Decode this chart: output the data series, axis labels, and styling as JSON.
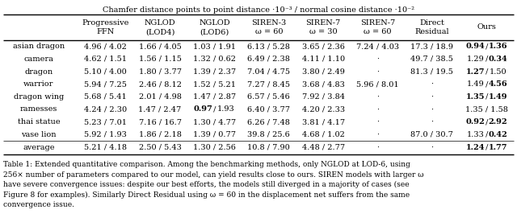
{
  "title": "Chamfer distance points to point distance ·10⁻³ / normal cosine distance ·10⁻²",
  "col_headers": [
    "Progressive\nFFN",
    "NGLOD\n(LOD4)",
    "NGLOD\n(LOD6)",
    "SIREN-3\nω = 60",
    "SIREN-7\nω = 30",
    "SIREN-7\nω = 60",
    "Direct\nResidual",
    "Ours"
  ],
  "row_labels": [
    "asian dragon",
    "camera",
    "dragon",
    "warrior",
    "dragon wing",
    "ramesses",
    "thai statue",
    "vase lion"
  ],
  "avg_label": "average",
  "table_data": [
    [
      "4.96 / 4.02",
      "1.66 / 4.05",
      "1.03 / 1.91",
      "6.13 / 5.28",
      "3.65 / 2.36",
      "7.24 / 4.03",
      "17.3 / 18.9",
      "0.94 / 1.36"
    ],
    [
      "4.62 / 1.51",
      "1.56 / 1.15",
      "1.32 / 0.62",
      "6.49 / 2.38",
      "4.11 / 1.10",
      "-",
      "49.7 / 38.5",
      "1.29 / 0.34"
    ],
    [
      "5.10 / 4.00",
      "1.80 / 3.77",
      "1.39 / 2.37",
      "7.04 / 4.75",
      "3.80 / 2.49",
      "-",
      "81.3 / 19.5",
      "1.27 / 1.50"
    ],
    [
      "5.94 / 7.25",
      "2.46 / 8.12",
      "1.52 / 5.21",
      "7.27 / 8.45",
      "3.68 / 4.83",
      "5.96 / 8.01",
      "-",
      "1.49 / 4.56"
    ],
    [
      "5.68 / 5.41",
      "2.01 / 4.98",
      "1.47 / 2.87",
      "6.57 / 5.46",
      "7.92 / 3.84",
      "-",
      "-",
      "1.35 / 1.49"
    ],
    [
      "4.24 / 2.30",
      "1.47 / 2.47",
      "0.97 / 1.93",
      "6.40 / 3.77",
      "4.20 / 2.33",
      "-",
      "-",
      "1.35 / 1.58"
    ],
    [
      "5.23 / 7.01",
      "7.16 / 16.7",
      "1.30 / 4.77",
      "6.26 / 7.48",
      "3.81 / 4.17",
      "-",
      "-",
      "0.92 / 2.92"
    ],
    [
      "5.92 / 1.93",
      "1.86 / 2.18",
      "1.39 / 0.77",
      "39.8 / 25.6",
      "4.68 / 1.02",
      "-",
      "87.0 / 30.7",
      "1.33 / 0.42"
    ]
  ],
  "avg_row": [
    "5.21 / 4.18",
    "2.50 / 5.43",
    "1.30 / 2.56",
    "10.8 / 7.90",
    "4.48 / 2.77",
    "-",
    "-",
    "1.24 / 1.77"
  ],
  "bold_map": {
    "0_7": "both",
    "1_7": "second",
    "2_7": "first",
    "3_7": "second",
    "4_7": "both",
    "5_2": "first",
    "6_7": "both",
    "7_7": "second",
    "8_7": "both"
  },
  "caption_parts": [
    {
      "text": "Table 1: ",
      "bold": false
    },
    {
      "text": "Extended quantitative comparison. Among the benchmarking methods, only NGLOD at LOD-6, using\n256",
      "bold": false
    },
    {
      "text": "×",
      "bold": false
    },
    {
      "text": " number of parameters compared to our model, can yield results close to ours. S",
      "bold": false
    },
    {
      "text": "IREN",
      "bold": false
    },
    {
      "text": " models with larger ω\nhave severe convergence issues: despite our best efforts, the models still diverged in a majority of cases (see\nFigure 8 for examples). Similarly Direct Residual using ω = 60 in the displacement net suffers from the same\nconvergence issue.",
      "bold": false
    }
  ],
  "caption_line1": "Table 1: Extended quantitative comparison. Among the benchmarking methods, only NGLOD at LOD-6, using",
  "caption_line2": "256× number of parameters compared to our model, can yield results close to ours. SIREN models with larger ω",
  "caption_line3": "have severe convergence issues: despite our best efforts, the models still diverged in a majority of cases (see",
  "caption_line4": "Figure 8 for examples). Similarly Direct Residual using ω = 60 in the displacement net suffers from the same",
  "caption_line5": "convergence issue.",
  "bg_color": "#ffffff"
}
